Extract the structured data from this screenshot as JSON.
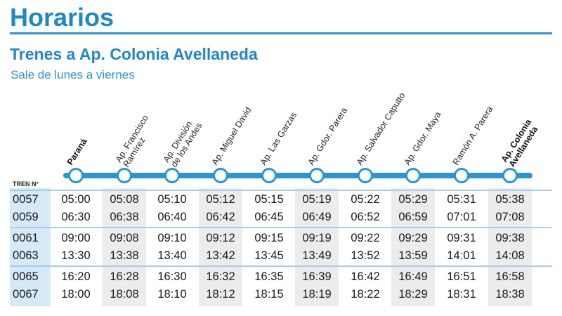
{
  "header": {
    "title": "Horarios",
    "subtitle": "Trenes a Ap. Colonia Avellaneda",
    "note": "Sale de lunes a viernes"
  },
  "table": {
    "train_header": "TREN N°",
    "stations": [
      {
        "line1": "Paraná",
        "line2": ""
      },
      {
        "line1": "Ap. Francisco",
        "line2": "Ramírez"
      },
      {
        "line1": "Ap. División",
        "line2": "de los Andes"
      },
      {
        "line1": "Ap. Miguel David",
        "line2": ""
      },
      {
        "line1": "Ap. Las Garzas",
        "line2": ""
      },
      {
        "line1": "Ap. Gdor. Parera",
        "line2": ""
      },
      {
        "line1": "Ap. Salvador Caputto",
        "line2": ""
      },
      {
        "line1": "Ap. Gdor. Maya",
        "line2": ""
      },
      {
        "line1": "Ramón A. Parera",
        "line2": ""
      },
      {
        "line1": "Ap. Colonia",
        "line2": "Avellaneda"
      }
    ],
    "rows": [
      {
        "train": "0057",
        "times": [
          "05:00",
          "05:08",
          "05:10",
          "05:12",
          "05:15",
          "05:19",
          "05:22",
          "05:29",
          "05:31",
          "05:38"
        ]
      },
      {
        "train": "0059",
        "times": [
          "06:30",
          "06:38",
          "06:40",
          "06:42",
          "06:45",
          "06:49",
          "06:52",
          "06:59",
          "07:01",
          "07:08"
        ]
      },
      {
        "train": "0061",
        "times": [
          "09:00",
          "09:08",
          "09:10",
          "09:12",
          "09:15",
          "09:19",
          "09:22",
          "09:29",
          "09:31",
          "09:38"
        ]
      },
      {
        "train": "0063",
        "times": [
          "13:30",
          "13:38",
          "13:40",
          "13:42",
          "13:45",
          "13:49",
          "13:52",
          "13:59",
          "14:01",
          "14:08"
        ]
      },
      {
        "train": "0065",
        "times": [
          "16:20",
          "16:28",
          "16:30",
          "16:32",
          "16:35",
          "16:39",
          "16:42",
          "16:49",
          "16:51",
          "16:58"
        ]
      },
      {
        "train": "0067",
        "times": [
          "18:00",
          "18:08",
          "18:10",
          "18:12",
          "18:15",
          "18:19",
          "18:22",
          "18:29",
          "18:31",
          "18:38"
        ]
      }
    ]
  },
  "colors": {
    "accent": "#1f86c8",
    "line": "#2a95d6",
    "shade": "#ececec",
    "first_col": "#d6e9f6"
  }
}
